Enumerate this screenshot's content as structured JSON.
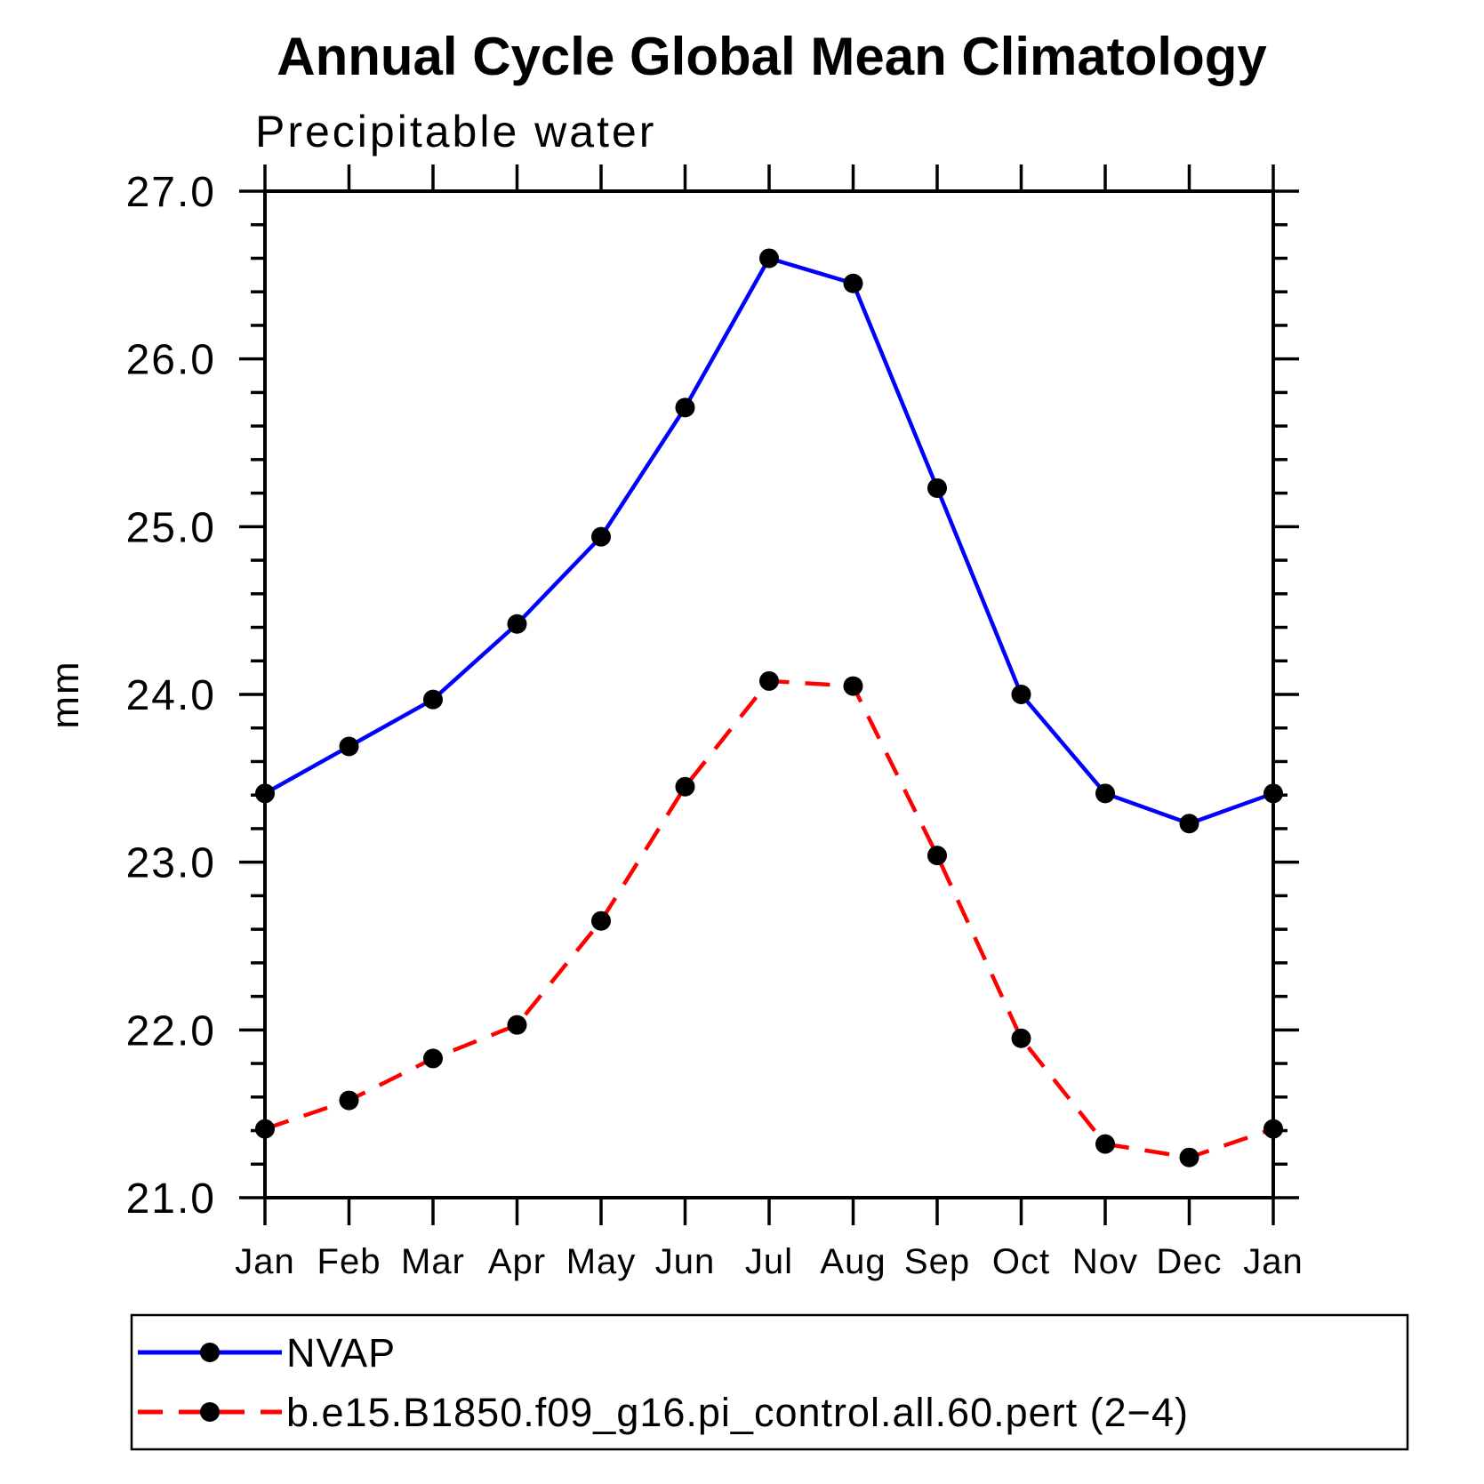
{
  "title": "Annual Cycle Global Mean Climatology",
  "subtitle": "Precipitable water",
  "ylabel": "mm",
  "chart_data": {
    "type": "line",
    "categories": [
      "Jan",
      "Feb",
      "Mar",
      "Apr",
      "May",
      "Jun",
      "Jul",
      "Aug",
      "Sep",
      "Oct",
      "Nov",
      "Dec",
      "Jan"
    ],
    "series": [
      {
        "name": "NVAP",
        "color": "#0000ff",
        "style": "solid",
        "values": [
          23.41,
          23.69,
          23.97,
          24.42,
          24.94,
          25.71,
          26.6,
          26.45,
          25.23,
          24.0,
          23.41,
          23.23,
          23.41
        ]
      },
      {
        "name": "b.e15.B1850.f09_g16.pi_control.all.60.pert (2−4)",
        "color": "#ff0000",
        "style": "dashed",
        "values": [
          21.41,
          21.58,
          21.83,
          22.03,
          22.65,
          23.45,
          24.08,
          24.05,
          23.04,
          21.95,
          21.32,
          21.24,
          21.41
        ]
      }
    ],
    "ylim": [
      21.0,
      27.0
    ],
    "yticks": [
      21.0,
      22.0,
      23.0,
      24.0,
      25.0,
      26.0,
      27.0
    ],
    "ytick_labels": [
      "21.0",
      "22.0",
      "23.0",
      "24.0",
      "25.0",
      "26.0",
      "27.0"
    ],
    "minor_tick_interval": 0.2,
    "marker": {
      "shape": "circle",
      "color": "#000000",
      "radius": 11
    },
    "grid": false,
    "legend_position": "bottom"
  }
}
